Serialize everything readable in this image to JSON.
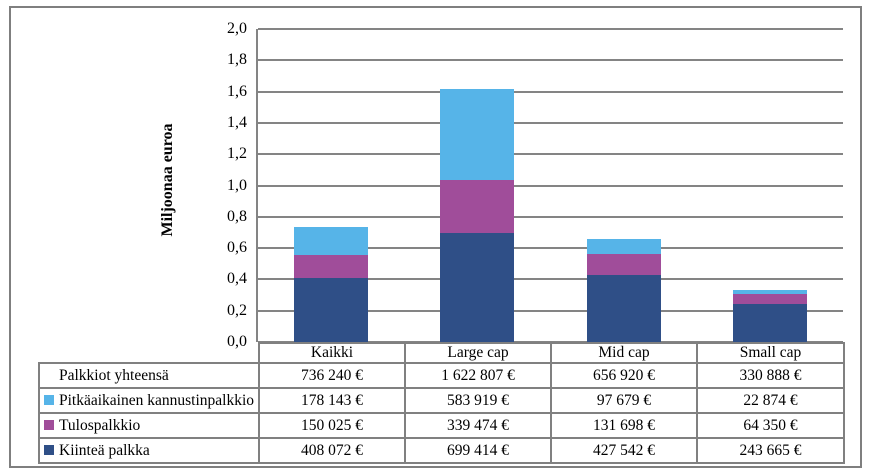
{
  "chart_data": {
    "type": "bar",
    "stacked": true,
    "title": "",
    "xlabel": "",
    "ylabel": "Miljoonaa euroa",
    "ylim": [
      0,
      2.0
    ],
    "ytick_step": 0.2,
    "ytick_labels": [
      "2,0",
      "1,8",
      "1,6",
      "1,4",
      "1,2",
      "1,0",
      "0,8",
      "0,6",
      "0,4",
      "0,2",
      "0,0"
    ],
    "grid": true,
    "legend_position": "table-below",
    "categories": [
      "Kaikki",
      "Large cap",
      "Mid cap",
      "Small cap"
    ],
    "series": [
      {
        "name": "Kiinteä palkka",
        "color": "#2F4F87",
        "values_eur": [
          408072,
          699414,
          427542,
          243665
        ],
        "values_millions": [
          0.408072,
          0.699414,
          0.427542,
          0.243665
        ]
      },
      {
        "name": "Tulospalkkio",
        "color": "#A04D9A",
        "values_eur": [
          150025,
          339474,
          131698,
          64350
        ],
        "values_millions": [
          0.150025,
          0.339474,
          0.131698,
          0.06435
        ]
      },
      {
        "name": "Pitkäaikainen kannustinpalkkio",
        "color": "#56B4E8",
        "values_eur": [
          178143,
          583919,
          97679,
          22874
        ],
        "values_millions": [
          0.178143,
          0.583919,
          0.097679,
          0.022874
        ]
      }
    ],
    "totals_eur": [
      736240,
      1622807,
      656920,
      330888
    ]
  },
  "table": {
    "columns": [
      "Kaikki",
      "Large cap",
      "Mid cap",
      "Small cap"
    ],
    "rows": [
      {
        "label": "Palkkiot yhteensä",
        "swatch": null,
        "values": [
          "736 240 €",
          "1 622 807 €",
          "656 920 €",
          "330 888 €"
        ]
      },
      {
        "label": "Pitkäaikainen kannustinpalkkio",
        "swatch": "#56B4E8",
        "values": [
          "178 143 €",
          "583 919 €",
          "97 679 €",
          "22 874 €"
        ]
      },
      {
        "label": "Tulospalkkio",
        "swatch": "#A04D9A",
        "values": [
          "150 025 €",
          "339 474 €",
          "131 698 €",
          "64 350 €"
        ]
      },
      {
        "label": "Kiinteä palkka",
        "swatch": "#2F4F87",
        "values": [
          "408 072 €",
          "699 414 €",
          "427 542 €",
          "243 665 €"
        ]
      }
    ]
  },
  "colors": {
    "grid": "#848484",
    "table_border": "#808080",
    "frame_border": "#7F7F7F",
    "background": "#FFFFFF"
  }
}
